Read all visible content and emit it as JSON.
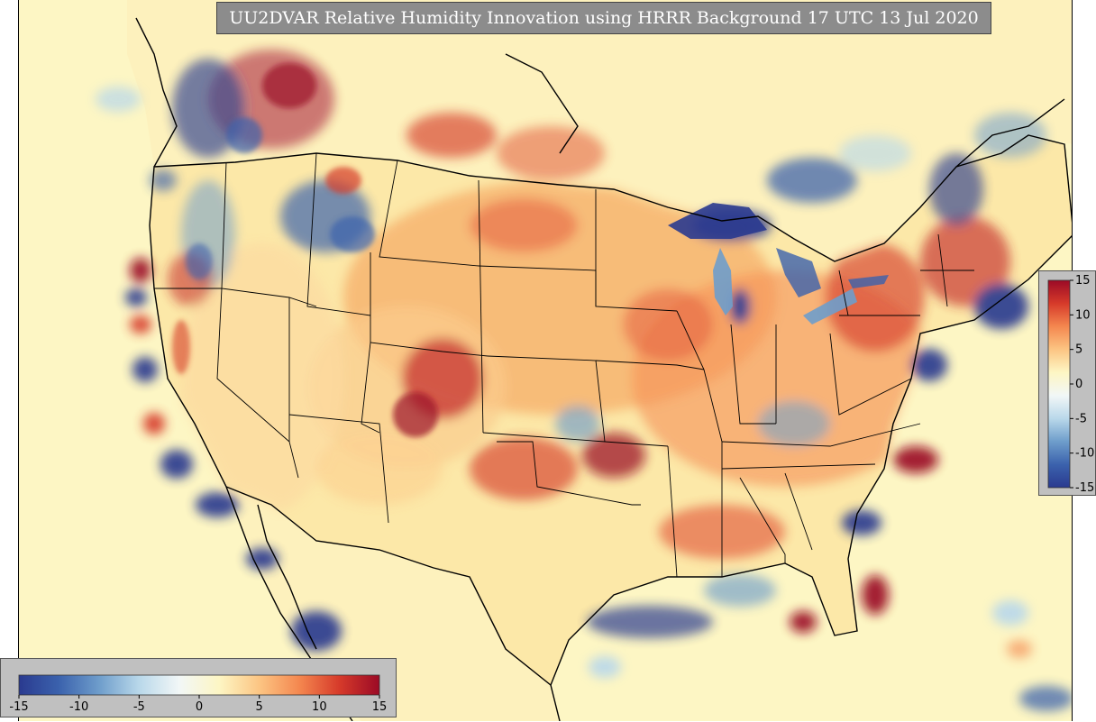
{
  "title": "UU2DVAR Relative Humidity Innovation using HRRR Background 17 UTC 13 Jul 2020",
  "colormap": {
    "min": -15,
    "max": 15,
    "stops": [
      "#2a3a8f",
      "#3b62ad",
      "#6e9dcb",
      "#b9d8ea",
      "#f2f7f7",
      "#fdf6c4",
      "#fcc583",
      "#f4874f",
      "#d63a2a",
      "#9b0a26"
    ],
    "background_color": "#fdf6c4",
    "land_color": "#fce8a8"
  },
  "colorbars": {
    "vertical": {
      "ticks": [
        "15",
        "10",
        "5",
        "0",
        "-5",
        "-10",
        "-15"
      ]
    },
    "horizontal": {
      "ticks": [
        "-15",
        "-10",
        "-5",
        "0",
        "5",
        "10",
        "15"
      ]
    }
  },
  "icons": {
    "map": "humidity-innovation-map"
  }
}
